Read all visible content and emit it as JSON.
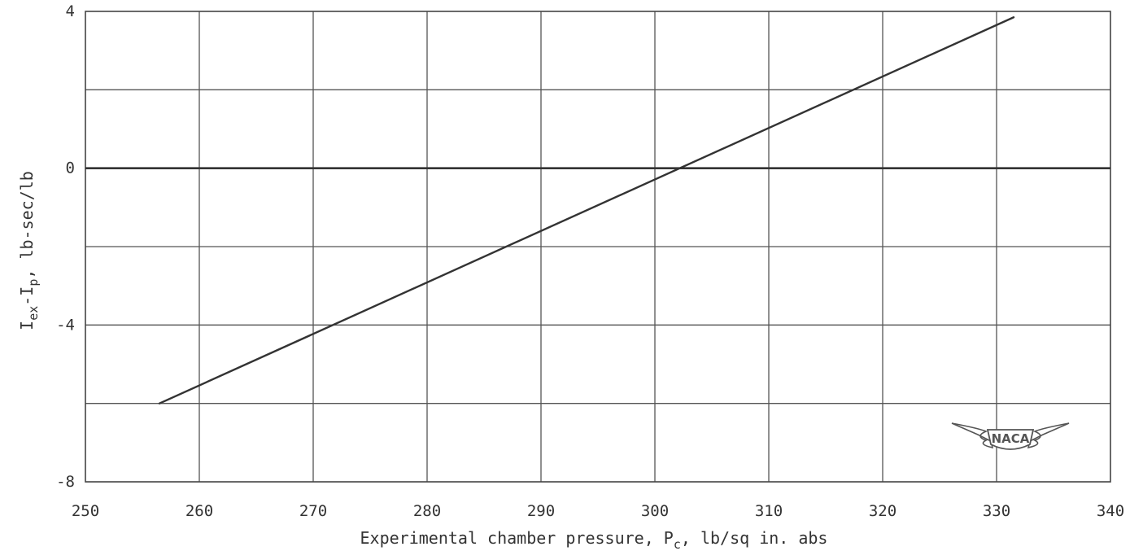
{
  "chart_data": {
    "type": "line",
    "xlabel": {
      "pre": "Experimental chamber pressure, P",
      "sub": "c",
      "post": ", lb/sq in. abs"
    },
    "ylabel": {
      "p1": "I",
      "s1": "ex",
      "p2": "-I",
      "s2": "p",
      "p3": ", lb-sec/lb"
    },
    "xlim": [
      250,
      340
    ],
    "ylim": [
      -8,
      4
    ],
    "x_ticks": [
      250,
      260,
      270,
      280,
      290,
      300,
      310,
      320,
      330,
      340
    ],
    "x_tick_labels": [
      "250",
      "260",
      "270",
      "280",
      "290",
      "300",
      "310",
      "320",
      "330",
      "340"
    ],
    "y_ticks": [
      -8,
      -4,
      0,
      4
    ],
    "y_tick_labels": [
      "-8",
      "-4",
      "0",
      "4"
    ],
    "y_gridlines": [
      -6,
      -4,
      -2,
      0,
      2,
      4
    ],
    "grid": true,
    "series": [
      {
        "x": [
          256.5,
          331.5
        ],
        "y": [
          -6.0,
          3.85
        ]
      }
    ],
    "reference_lines": [
      {
        "axis": "y",
        "value": 0
      }
    ]
  },
  "logo": {
    "text": "NACA",
    "color": "#555555"
  }
}
